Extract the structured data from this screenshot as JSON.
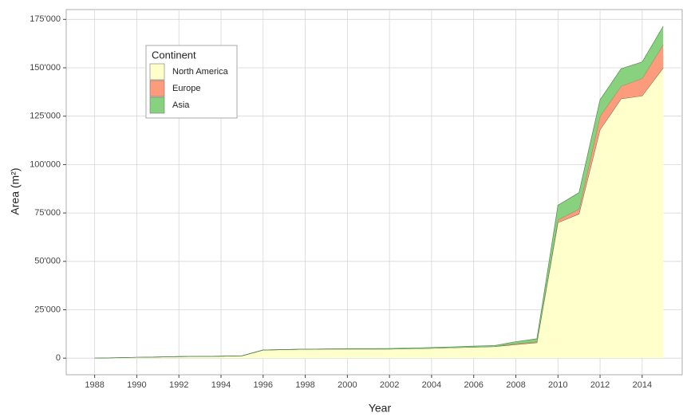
{
  "chart_data": {
    "type": "area",
    "stacked": true,
    "x_label": "Year",
    "y_label": "Area (m²)",
    "legend_title": "Continent",
    "legend_position": "top-left",
    "grid": true,
    "x": [
      1988,
      1989,
      1990,
      1991,
      1992,
      1993,
      1994,
      1995,
      1996,
      1997,
      1998,
      1999,
      2000,
      2001,
      2002,
      2003,
      2004,
      2005,
      2006,
      2007,
      2008,
      2009,
      2010,
      2011,
      2012,
      2013,
      2014,
      2015
    ],
    "series": [
      {
        "name": "North America",
        "color": "#ffffcc",
        "values": [
          0,
          200,
          400,
          600,
          800,
          900,
          1000,
          1200,
          4200,
          4400,
          4600,
          4700,
          4700,
          4700,
          4700,
          4900,
          5100,
          5400,
          5700,
          6000,
          7000,
          8000,
          70000,
          74500,
          118000,
          134000,
          135500,
          150000
        ]
      },
      {
        "name": "Europe",
        "color": "#fc9c7c",
        "values": [
          0,
          0,
          0,
          0,
          0,
          0,
          0,
          0,
          0,
          0,
          0,
          0,
          0,
          0,
          0,
          0,
          0,
          0,
          0,
          0,
          500,
          500,
          1500,
          2500,
          7000,
          6500,
          9000,
          12000
        ]
      },
      {
        "name": "Asia",
        "color": "#88d27f",
        "values": [
          0,
          0,
          0,
          0,
          0,
          0,
          0,
          0,
          0,
          0,
          0,
          0,
          200,
          200,
          300,
          300,
          400,
          400,
          500,
          500,
          1000,
          1500,
          7500,
          8500,
          8500,
          9000,
          8500,
          9500
        ]
      }
    ],
    "xlim": [
      1986.65,
      2015.9
    ],
    "xticks": [
      1988,
      1990,
      1992,
      1994,
      1996,
      1998,
      2000,
      2002,
      2004,
      2006,
      2008,
      2010,
      2012,
      2014
    ],
    "ylim": [
      -8575,
      180075
    ],
    "yticks": [
      0,
      {
        "value": 25000,
        "label": "25'000"
      },
      {
        "value": 50000,
        "label": "50'000"
      },
      {
        "value": 75000,
        "label": "75'000"
      },
      {
        "value": 100000,
        "label": "100'000"
      },
      {
        "value": 125000,
        "label": "125'000"
      },
      {
        "value": 150000,
        "label": "150'000"
      },
      {
        "value": 175000,
        "label": "175'000"
      }
    ]
  }
}
